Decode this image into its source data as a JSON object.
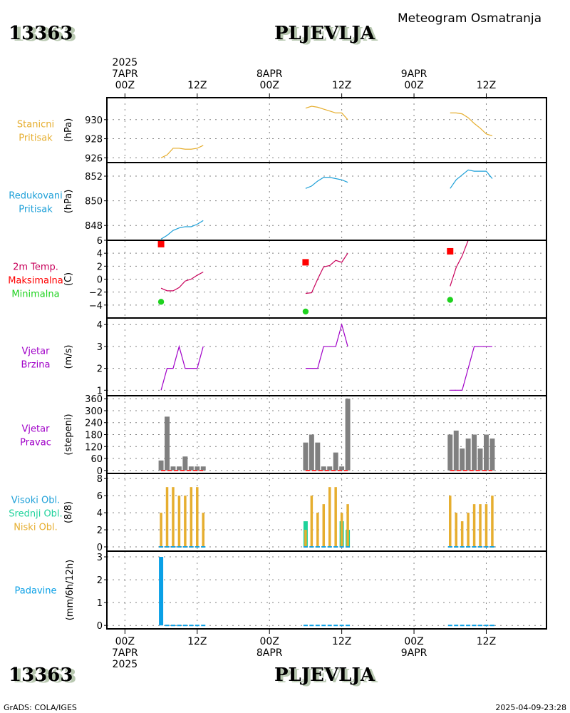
{
  "header": {
    "station_id": "13363",
    "station_name": "PLJEVLJA",
    "product_title": "Meteogram Osmatranja"
  },
  "footer": {
    "station_id": "13363",
    "station_name": "PLJEVLJA",
    "credit": "GrADS: COLA/IGES",
    "timestamp": "2025-04-09-23:28"
  },
  "colors": {
    "station_pressure": "#e6ae2f",
    "reduced_pressure": "#1ea0d8",
    "temperature": "#c8005a",
    "tmax": "#ff0000",
    "tmin": "#1ed21e",
    "wind_speed": "#a000c8",
    "wind_dir": "#808080",
    "high_cloud": "#1ea0d8",
    "mid_cloud": "#1ed29b",
    "low_cloud": "#e6ae2f",
    "precip": "#0aa0e6",
    "grid": "#808080",
    "frame": "#000000"
  },
  "chart_data": {
    "type": "line",
    "title": "Meteogram Osmatranja — 13363 PLJEVLJA",
    "x_axis": {
      "units": "hours since 2025-04-07 00Z",
      "range": [
        -3,
        70
      ],
      "top_ticks": [
        {
          "hour": 0,
          "lines": [
            "2025",
            "7APR",
            "00Z"
          ]
        },
        {
          "hour": 12,
          "lines": [
            "",
            "",
            "12Z"
          ]
        },
        {
          "hour": 24,
          "lines": [
            "",
            "8APR",
            "00Z"
          ]
        },
        {
          "hour": 36,
          "lines": [
            "",
            "",
            "12Z"
          ]
        },
        {
          "hour": 48,
          "lines": [
            "",
            "9APR",
            "00Z"
          ]
        },
        {
          "hour": 60,
          "lines": [
            "",
            "",
            "12Z"
          ]
        }
      ],
      "bottom_ticks": [
        {
          "hour": 0,
          "lines": [
            "00Z",
            "7APR",
            "2025"
          ]
        },
        {
          "hour": 12,
          "lines": [
            "12Z"
          ]
        },
        {
          "hour": 24,
          "lines": [
            "00Z",
            "8APR"
          ]
        },
        {
          "hour": 36,
          "lines": [
            "12Z"
          ]
        },
        {
          "hour": 48,
          "lines": [
            "00Z",
            "9APR"
          ]
        },
        {
          "hour": 60,
          "lines": [
            "12Z"
          ]
        }
      ],
      "grid": true
    },
    "observation_hours": [
      [
        6,
        7,
        8,
        9,
        10,
        11,
        12,
        13
      ],
      [
        30,
        31,
        32,
        33,
        34,
        35,
        36,
        37
      ],
      [
        54,
        55,
        56,
        57,
        58,
        59,
        60,
        61
      ]
    ],
    "panels": [
      {
        "id": "station-pressure",
        "labels": [
          "Stanicni",
          "Pritisak"
        ],
        "label_colors": [
          "station_pressure",
          "station_pressure"
        ],
        "unit": "(hPa)",
        "type": "line",
        "ylim": [
          925.5,
          932.3
        ],
        "yticks": [
          926,
          928,
          930
        ],
        "series": [
          {
            "name": "Stanicni Pritisak",
            "color": "station_pressure",
            "x": [
              6,
              7,
              8,
              9,
              10,
              11,
              12,
              13
            ],
            "y": [
              926.0,
              926.3,
              927.0,
              927.0,
              926.9,
              926.9,
              927.0,
              927.3
            ]
          },
          {
            "name": "Stanicni Pritisak",
            "color": "station_pressure",
            "x": [
              30,
              31,
              32,
              33,
              34,
              35,
              36,
              37
            ],
            "y": [
              931.2,
              931.4,
              931.3,
              931.1,
              930.9,
              930.7,
              930.7,
              930.0
            ]
          },
          {
            "name": "Stanicni Pritisak",
            "color": "station_pressure",
            "x": [
              54,
              55,
              56,
              57,
              58,
              59,
              60,
              61
            ],
            "y": [
              930.7,
              930.7,
              930.6,
              930.2,
              929.6,
              929.1,
              928.5,
              928.3
            ]
          }
        ]
      },
      {
        "id": "reduced-pressure",
        "labels": [
          "Redukovani",
          "Pritisak"
        ],
        "label_colors": [
          "reduced_pressure",
          "reduced_pressure"
        ],
        "unit": "(hPa)",
        "type": "line",
        "ylim": [
          846.8,
          853.1
        ],
        "yticks": [
          848,
          850,
          852
        ],
        "series": [
          {
            "name": "Redukovani Pritisak",
            "color": "reduced_pressure",
            "x": [
              6,
              7,
              8,
              9,
              10,
              11,
              12,
              13
            ],
            "y": [
              846.9,
              847.2,
              847.6,
              847.8,
              847.9,
              847.9,
              848.1,
              848.4
            ]
          },
          {
            "name": "Redukovani Pritisak",
            "color": "reduced_pressure",
            "x": [
              30,
              31,
              32,
              33,
              34,
              35,
              36,
              37
            ],
            "y": [
              851.0,
              851.2,
              851.6,
              851.9,
              851.9,
              851.8,
              851.7,
              851.5
            ]
          },
          {
            "name": "Redukovani Pritisak",
            "color": "reduced_pressure",
            "x": [
              54,
              55,
              56,
              57,
              58,
              59,
              60,
              61
            ],
            "y": [
              851.0,
              851.7,
              852.1,
              852.5,
              852.4,
              852.4,
              852.4,
              851.8
            ]
          }
        ]
      },
      {
        "id": "temperature",
        "labels": [
          "2m Temp.",
          "Maksimalna",
          "Minimalna"
        ],
        "label_colors": [
          "temperature",
          "tmax",
          "tmin"
        ],
        "unit": "(C)",
        "type": "line",
        "ylim": [
          -6,
          6
        ],
        "yticks": [
          -4,
          -2,
          0,
          2,
          4,
          6
        ],
        "series": [
          {
            "name": "2m Temp.",
            "color": "temperature",
            "x": [
              6,
              7,
              8,
              9,
              10,
              11,
              12,
              13
            ],
            "y": [
              -1.4,
              -1.8,
              -1.8,
              -1.3,
              -0.3,
              0.0,
              0.6,
              1.1
            ]
          },
          {
            "name": "2m Temp.",
            "color": "temperature",
            "x": [
              30,
              31,
              32,
              33,
              34,
              35,
              36,
              37
            ],
            "y": [
              -2.2,
              -2.1,
              0.0,
              1.9,
              2.1,
              2.9,
              2.6,
              4.0
            ]
          },
          {
            "name": "2m Temp.",
            "color": "temperature",
            "x": [
              54,
              55,
              56,
              57
            ],
            "y": [
              -1.1,
              1.8,
              3.6,
              6.0
            ]
          }
        ],
        "markers": [
          {
            "name": "Maksimalna",
            "color": "tmax",
            "shape": "square",
            "points": [
              {
                "x": 6,
                "y": 5.4
              },
              {
                "x": 30,
                "y": 2.6
              },
              {
                "x": 54,
                "y": 4.3
              }
            ]
          },
          {
            "name": "Minimalna",
            "color": "tmin",
            "shape": "circle",
            "points": [
              {
                "x": 6,
                "y": -3.5
              },
              {
                "x": 30,
                "y": -5.0
              },
              {
                "x": 54,
                "y": -3.2
              }
            ]
          }
        ]
      },
      {
        "id": "wind-speed",
        "labels": [
          "Vjetar",
          "Brzina"
        ],
        "label_colors": [
          "wind_speed",
          "wind_speed"
        ],
        "unit": "(m/s)",
        "type": "line",
        "ylim": [
          0.75,
          4.3
        ],
        "yticks": [
          1,
          2,
          3,
          4
        ],
        "series": [
          {
            "name": "Vjetar Brzina",
            "color": "wind_speed",
            "x": [
              6,
              7,
              8,
              9,
              10,
              11,
              12,
              13
            ],
            "y": [
              1,
              2,
              2,
              3,
              2,
              2,
              2,
              3
            ]
          },
          {
            "name": "Vjetar Brzina",
            "color": "wind_speed",
            "x": [
              30,
              31,
              32,
              33,
              34,
              35,
              36,
              37
            ],
            "y": [
              2,
              2,
              2,
              3,
              3,
              3,
              4,
              3
            ]
          },
          {
            "name": "Vjetar Brzina",
            "color": "wind_speed",
            "x": [
              54,
              55,
              56,
              57,
              58,
              59,
              60,
              61
            ],
            "y": [
              1,
              1,
              1,
              2,
              3,
              3,
              3,
              3
            ]
          }
        ]
      },
      {
        "id": "wind-direction",
        "labels": [
          "Vjetar",
          "Pravac"
        ],
        "label_colors": [
          "wind_speed",
          "wind_speed"
        ],
        "unit": "(stepeni)",
        "type": "bar",
        "ylim": [
          -15,
          375
        ],
        "yticks": [
          0,
          60,
          120,
          180,
          240,
          300,
          360
        ],
        "bars": [
          {
            "name": "Vjetar Pravac",
            "color": "wind_dir",
            "x": [
              6,
              7,
              8,
              9,
              10,
              11,
              12,
              13
            ],
            "y": [
              50,
              270,
              20,
              20,
              70,
              20,
              20,
              20
            ]
          },
          {
            "name": "Vjetar Pravac",
            "color": "wind_dir",
            "x": [
              30,
              31,
              32,
              33,
              34,
              35,
              36,
              37
            ],
            "y": [
              140,
              180,
              140,
              20,
              20,
              90,
              20,
              360
            ]
          },
          {
            "name": "Vjetar Pravac",
            "color": "wind_dir",
            "x": [
              54,
              55,
              56,
              57,
              58,
              59,
              60,
              61
            ],
            "y": [
              180,
              200,
              110,
              160,
              180,
              110,
              180,
              160
            ]
          }
        ],
        "baseline_dash_color": "tmax"
      },
      {
        "id": "cloud-cover",
        "labels": [
          "Visoki Obl.",
          "Srednji Obl.",
          "Niski Obl."
        ],
        "label_colors": [
          "high_cloud",
          "mid_cloud",
          "low_cloud"
        ],
        "unit": "(8/8)",
        "type": "bar",
        "ylim": [
          -0.5,
          8.6
        ],
        "yticks": [
          0,
          2,
          4,
          6,
          8
        ],
        "bars": [
          {
            "name": "Srednji Obl.",
            "color": "mid_cloud",
            "width": "wide",
            "x": [
              6,
              7,
              8,
              9,
              10,
              11,
              12,
              13,
              30,
              31,
              32,
              33,
              34,
              35,
              36,
              37,
              54,
              55,
              56,
              57,
              58,
              59,
              60,
              61
            ],
            "y": [
              0,
              0,
              0,
              0,
              0,
              0,
              0,
              0,
              3,
              0,
              0,
              0,
              0,
              0,
              3,
              2,
              0,
              0,
              0,
              0,
              0,
              0,
              0,
              0
            ]
          },
          {
            "name": "Niski Obl.",
            "color": "low_cloud",
            "width": "narrow",
            "x": [
              6,
              7,
              8,
              9,
              10,
              11,
              12,
              13,
              30,
              31,
              32,
              33,
              34,
              35,
              36,
              37,
              54,
              55,
              56,
              57,
              58,
              59,
              60,
              61
            ],
            "y": [
              4,
              7,
              7,
              6,
              6,
              7,
              7,
              4,
              2,
              6,
              4,
              5,
              7,
              7,
              4,
              5,
              6,
              4,
              3,
              4,
              5,
              5,
              5,
              6
            ]
          },
          {
            "name": "Visoki Obl.",
            "color": "high_cloud",
            "width": "wide",
            "x": [
              6,
              7,
              8,
              9,
              10,
              11,
              12,
              13,
              30,
              31,
              32,
              33,
              34,
              35,
              36,
              37,
              54,
              55,
              56,
              57,
              58,
              59,
              60,
              61
            ],
            "y": [
              0,
              0,
              0,
              0,
              0,
              0,
              0,
              0,
              0,
              0,
              0,
              0,
              0,
              0,
              0,
              0,
              0,
              0,
              0,
              0,
              0,
              0,
              0,
              0
            ]
          }
        ]
      },
      {
        "id": "precipitation",
        "labels": [
          "Padavine"
        ],
        "label_colors": [
          "precip"
        ],
        "unit": "(mm/6h/12h)",
        "type": "bar",
        "ylim": [
          -0.15,
          3.25
        ],
        "yticks": [
          0,
          1,
          2,
          3
        ],
        "bars": [
          {
            "name": "Padavine",
            "color": "precip",
            "width": "wide",
            "x": [
              6
            ],
            "y": [
              3.0
            ]
          },
          {
            "name": "Padavine",
            "color": "precip",
            "width": "line",
            "x": [
              7,
              8,
              9,
              10,
              11,
              12,
              13,
              30,
              31,
              32,
              33,
              34,
              35,
              36,
              37,
              54,
              55,
              56,
              57,
              58,
              59,
              60,
              61
            ],
            "y": [
              0,
              0,
              0,
              0,
              0,
              0,
              0,
              0,
              0,
              0,
              0,
              0,
              0,
              0,
              0,
              0,
              0,
              0,
              0,
              0,
              0,
              0,
              0
            ]
          }
        ]
      }
    ]
  }
}
